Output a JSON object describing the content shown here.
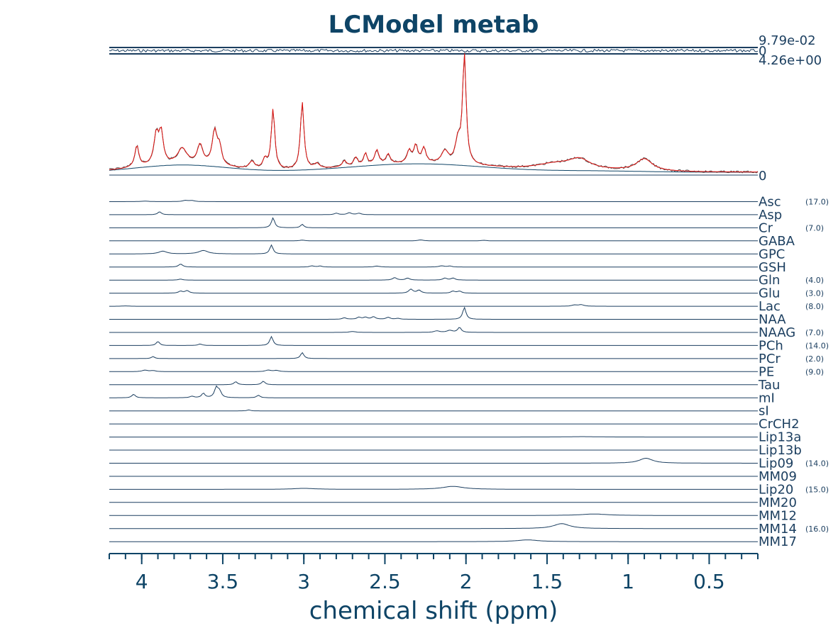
{
  "colors": {
    "text": "#0e4466",
    "trace": "#1c3f60",
    "fit": "#e0120f",
    "data": "#555555"
  },
  "chart_data": {
    "type": "line",
    "title": "LCModel metab",
    "xlabel": "chemical shift (ppm)",
    "xlim": [
      4.2,
      0.2
    ],
    "x_ticks": [
      4,
      3.5,
      3,
      2.5,
      2,
      1.5,
      1,
      0.5
    ],
    "x_tick_labels": [
      "4",
      "3.5",
      "3",
      "2.5",
      "2",
      "1.5",
      "1",
      "0.5"
    ],
    "residual": {
      "max_label": "9.79e-02",
      "zero_label": "0"
    },
    "spectrum": {
      "max_label": "4.26e+00",
      "zero_label": "0",
      "fit_peaks": [
        [
          4.03,
          0.18,
          0.015
        ],
        [
          3.91,
          0.25,
          0.018
        ],
        [
          3.88,
          0.25,
          0.015
        ],
        [
          3.75,
          0.13,
          0.035
        ],
        [
          3.64,
          0.16,
          0.02
        ],
        [
          3.55,
          0.28,
          0.018
        ],
        [
          3.52,
          0.14,
          0.015
        ],
        [
          3.32,
          0.06,
          0.02
        ],
        [
          3.24,
          0.08,
          0.015
        ],
        [
          3.19,
          0.5,
          0.013
        ],
        [
          3.01,
          0.56,
          0.013
        ],
        [
          2.92,
          0.04,
          0.02
        ],
        [
          2.75,
          0.05,
          0.015
        ],
        [
          2.68,
          0.07,
          0.015
        ],
        [
          2.62,
          0.1,
          0.012
        ],
        [
          2.55,
          0.12,
          0.015
        ],
        [
          2.48,
          0.08,
          0.015
        ],
        [
          2.35,
          0.1,
          0.015
        ],
        [
          2.31,
          0.14,
          0.015
        ],
        [
          2.26,
          0.12,
          0.015
        ],
        [
          2.13,
          0.1,
          0.025
        ],
        [
          2.05,
          0.18,
          0.018
        ],
        [
          2.01,
          0.9,
          0.013
        ],
        [
          1.3,
          0.08,
          0.08
        ],
        [
          1.45,
          0.05,
          0.15
        ],
        [
          0.9,
          0.1,
          0.06
        ]
      ],
      "baseline_bumps": [
        [
          3.75,
          0.06,
          0.28
        ],
        [
          2.3,
          0.07,
          0.42
        ],
        [
          1.2,
          0.01,
          0.3
        ]
      ]
    },
    "series": [
      {
        "name": "Asc",
        "crlb": "(17.0)",
        "peaks": [
          [
            3.73,
            0.12,
            0.02
          ],
          [
            3.69,
            0.1,
            0.02
          ],
          [
            3.98,
            0.05,
            0.03
          ]
        ]
      },
      {
        "name": "Asp",
        "crlb": "",
        "peaks": [
          [
            3.89,
            0.3,
            0.013
          ],
          [
            2.8,
            0.15,
            0.015
          ],
          [
            2.72,
            0.2,
            0.015
          ],
          [
            2.66,
            0.15,
            0.015
          ]
        ]
      },
      {
        "name": "Cr",
        "crlb": "(7.0)",
        "peaks": [
          [
            3.19,
            1.0,
            0.012
          ],
          [
            3.01,
            0.35,
            0.012
          ]
        ]
      },
      {
        "name": "GABA",
        "crlb": "",
        "peaks": [
          [
            3.01,
            0.08,
            0.02
          ],
          [
            2.28,
            0.1,
            0.02
          ],
          [
            1.89,
            0.06,
            0.02
          ]
        ]
      },
      {
        "name": "GPC",
        "crlb": "",
        "peaks": [
          [
            3.87,
            0.28,
            0.03
          ],
          [
            3.62,
            0.35,
            0.035
          ],
          [
            3.2,
            0.9,
            0.012
          ]
        ]
      },
      {
        "name": "GSH",
        "crlb": "",
        "peaks": [
          [
            3.76,
            0.3,
            0.015
          ],
          [
            2.95,
            0.12,
            0.015
          ],
          [
            2.9,
            0.1,
            0.015
          ],
          [
            2.55,
            0.1,
            0.02
          ],
          [
            2.15,
            0.12,
            0.02
          ],
          [
            2.1,
            0.1,
            0.015
          ]
        ]
      },
      {
        "name": "Gln",
        "crlb": "(4.0)",
        "peaks": [
          [
            3.76,
            0.1,
            0.015
          ],
          [
            2.44,
            0.25,
            0.015
          ],
          [
            2.36,
            0.2,
            0.015
          ],
          [
            2.13,
            0.2,
            0.015
          ],
          [
            2.08,
            0.2,
            0.015
          ]
        ]
      },
      {
        "name": "Glu",
        "crlb": "(3.0)",
        "peaks": [
          [
            3.76,
            0.2,
            0.015
          ],
          [
            3.72,
            0.25,
            0.015
          ],
          [
            2.34,
            0.4,
            0.015
          ],
          [
            2.29,
            0.3,
            0.015
          ],
          [
            2.08,
            0.2,
            0.015
          ],
          [
            2.04,
            0.2,
            0.015
          ]
        ]
      },
      {
        "name": "Lac",
        "crlb": "(8.0)",
        "peaks": [
          [
            1.33,
            0.12,
            0.02
          ],
          [
            1.29,
            0.15,
            0.02
          ],
          [
            4.1,
            0.04,
            0.02
          ]
        ]
      },
      {
        "name": "NAA",
        "crlb": "",
        "peaks": [
          [
            2.01,
            1.2,
            0.012
          ],
          [
            2.75,
            0.15,
            0.015
          ],
          [
            2.66,
            0.2,
            0.015
          ],
          [
            2.62,
            0.2,
            0.015
          ],
          [
            2.57,
            0.25,
            0.015
          ],
          [
            2.48,
            0.2,
            0.015
          ],
          [
            2.42,
            0.1,
            0.015
          ]
        ]
      },
      {
        "name": "NAAG",
        "crlb": "(7.0)",
        "peaks": [
          [
            2.04,
            0.5,
            0.013
          ],
          [
            2.1,
            0.2,
            0.02
          ],
          [
            2.18,
            0.15,
            0.02
          ],
          [
            2.7,
            0.1,
            0.02
          ]
        ]
      },
      {
        "name": "PCh",
        "crlb": "(14.0)",
        "peaks": [
          [
            3.9,
            0.4,
            0.013
          ],
          [
            3.2,
            0.9,
            0.012
          ],
          [
            3.64,
            0.15,
            0.015
          ]
        ]
      },
      {
        "name": "PCr",
        "crlb": "(2.0)",
        "peaks": [
          [
            3.01,
            0.6,
            0.012
          ],
          [
            3.93,
            0.2,
            0.012
          ]
        ]
      },
      {
        "name": "PE",
        "crlb": "(9.0)",
        "peaks": [
          [
            3.98,
            0.15,
            0.02
          ],
          [
            3.93,
            0.1,
            0.02
          ],
          [
            3.22,
            0.15,
            0.02
          ],
          [
            3.17,
            0.12,
            0.02
          ]
        ]
      },
      {
        "name": "Tau",
        "crlb": "",
        "peaks": [
          [
            3.42,
            0.3,
            0.013
          ],
          [
            3.25,
            0.35,
            0.013
          ]
        ]
      },
      {
        "name": "mI",
        "crlb": "",
        "peaks": [
          [
            4.05,
            0.35,
            0.013
          ],
          [
            3.62,
            0.45,
            0.012
          ],
          [
            3.54,
            1.0,
            0.013
          ],
          [
            3.52,
            0.6,
            0.013
          ],
          [
            3.28,
            0.25,
            0.013
          ],
          [
            3.69,
            0.15,
            0.015
          ]
        ]
      },
      {
        "name": "sI",
        "crlb": "",
        "peaks": [
          [
            3.34,
            0.1,
            0.012
          ]
        ]
      },
      {
        "name": "CrCH2",
        "crlb": "",
        "peaks": []
      },
      {
        "name": "Lip13a",
        "crlb": "",
        "peaks": [
          [
            1.28,
            0.04,
            0.12
          ]
        ]
      },
      {
        "name": "Lip13b",
        "crlb": "",
        "peaks": []
      },
      {
        "name": "Lip09",
        "crlb": "(14.0)",
        "peaks": [
          [
            0.89,
            0.5,
            0.05
          ]
        ]
      },
      {
        "name": "MM09",
        "crlb": "",
        "peaks": []
      },
      {
        "name": "Lip20",
        "crlb": "(15.0)",
        "peaks": [
          [
            2.08,
            0.3,
            0.08
          ],
          [
            3.0,
            0.1,
            0.08
          ]
        ]
      },
      {
        "name": "MM20",
        "crlb": "",
        "peaks": []
      },
      {
        "name": "MM12",
        "crlb": "",
        "peaks": [
          [
            1.21,
            0.15,
            0.1
          ]
        ]
      },
      {
        "name": "MM14",
        "crlb": "(16.0)",
        "peaks": [
          [
            1.41,
            0.5,
            0.06
          ]
        ]
      },
      {
        "name": "MM17",
        "crlb": "",
        "peaks": [
          [
            1.62,
            0.18,
            0.08
          ]
        ]
      }
    ]
  }
}
